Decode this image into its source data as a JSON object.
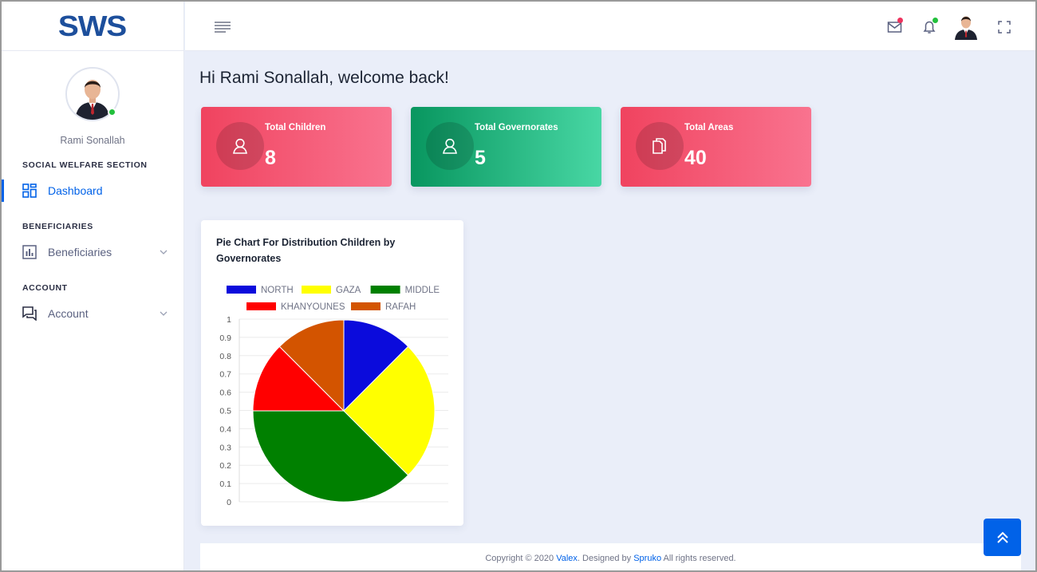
{
  "brand": {
    "logo_text": "SWS",
    "color": "#1d4f9c"
  },
  "user": {
    "name": "Rami Sonallah",
    "status": "online"
  },
  "sidebar": {
    "sections": [
      {
        "label": "SOCIAL WELFARE SECTION",
        "items": [
          {
            "label": "Dashboard",
            "icon": "dashboard-icon",
            "active": true
          }
        ]
      },
      {
        "label": "BENEFICIARIES",
        "items": [
          {
            "label": "Beneficiaries",
            "icon": "bar-chart-icon",
            "expandable": true
          }
        ]
      },
      {
        "label": "ACCOUNT",
        "items": [
          {
            "label": "Account",
            "icon": "chat-icon",
            "expandable": true
          }
        ]
      }
    ]
  },
  "header": {
    "icons": [
      "menu-icon",
      "mail-icon",
      "bell-icon",
      "user-avatar",
      "fullscreen-icon"
    ],
    "mail_badge_color": "#ee335e",
    "bell_badge_color": "#22c03c"
  },
  "main": {
    "welcome": "Hi Rami Sonallah, welcome back!",
    "cards": [
      {
        "label": "Total Children",
        "value": "8",
        "icon": "user-icon",
        "style": "pink"
      },
      {
        "label": "Total Governorates",
        "value": "5",
        "icon": "user-icon",
        "style": "green"
      },
      {
        "label": "Total Areas",
        "value": "40",
        "icon": "documents-icon",
        "style": "pink"
      }
    ]
  },
  "chart_card": {
    "title": "Pie Chart For Distribution Children by Governorates"
  },
  "chart_data": {
    "type": "pie",
    "title": "Pie Chart For Distribution Children by Governorates",
    "categories": [
      "NORTH",
      "GAZA",
      "MIDDLE",
      "KHANYOUNES",
      "RAFAH"
    ],
    "values": [
      1,
      2,
      3,
      1,
      1
    ],
    "colors": [
      "#0b0bdc",
      "#ffff00",
      "#008000",
      "#ff0000",
      "#d35400"
    ],
    "y_ticks": [
      "1",
      "0.9",
      "0.8",
      "0.7",
      "0.6",
      "0.5",
      "0.4",
      "0.3",
      "0.2",
      "0.1",
      "0"
    ],
    "ylim": [
      0,
      1
    ],
    "grid": true,
    "legend_position": "top"
  },
  "footer": {
    "prefix": "Copyright © 2020 ",
    "link1": "Valex",
    "middle": ". Designed by ",
    "link2": "Spruko",
    "suffix": " All rights reserved."
  },
  "colors": {
    "accent": "#0162e8",
    "background": "#eaeef9"
  }
}
